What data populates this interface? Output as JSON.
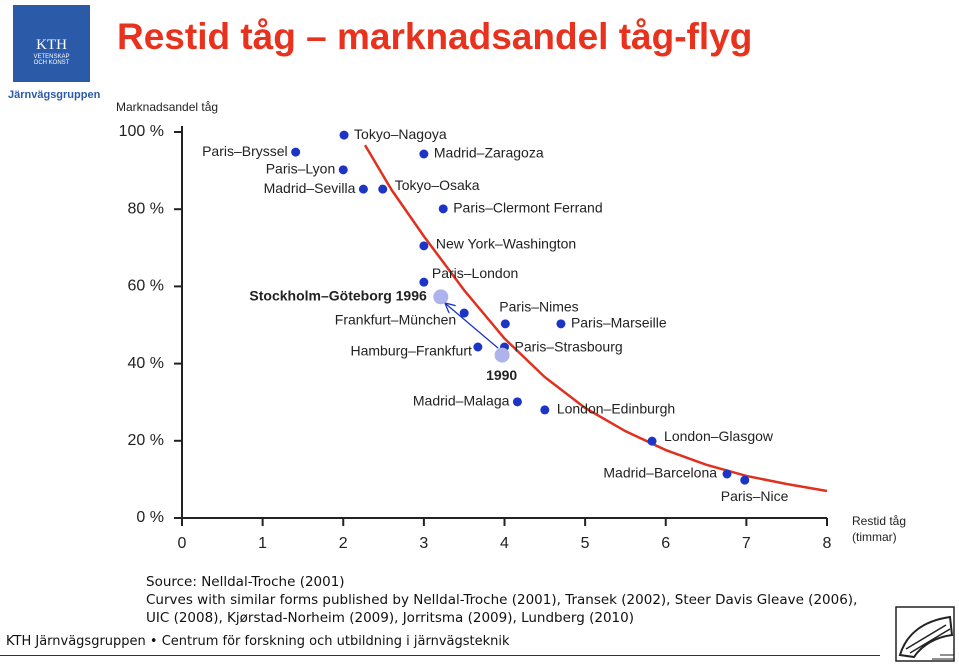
{
  "header": {
    "title": "Restid tåg – marknadsandel tåg-flyg",
    "logo": [
      "KTH",
      "VETENSKAP",
      "OCH KONST"
    ],
    "group": "Järnvägsgruppen"
  },
  "chart_data": {
    "type": "scatter",
    "ylabel": "Marknadsandel tåg",
    "xlabel": [
      "Restid  tåg",
      "(timmar)"
    ],
    "xlim": [
      0,
      8
    ],
    "xticks": [
      0,
      1,
      2,
      3,
      4,
      5,
      6,
      7,
      8
    ],
    "ylim": [
      0,
      100
    ],
    "yticks": [
      {
        "value": 0,
        "label": "0 %"
      },
      {
        "value": 20,
        "label": "20 %"
      },
      {
        "value": 40,
        "label": "40 %"
      },
      {
        "value": 60,
        "label": "60 %"
      },
      {
        "value": 80,
        "label": "80 %"
      },
      {
        "value": 100,
        "label": "100 %"
      }
    ],
    "points": [
      {
        "label": "Paris–Bryssel",
        "x": 1.41,
        "y": 94.8,
        "color": "#1c35c4"
      },
      {
        "label": "Tokyo–Nagoya",
        "x": 2.01,
        "y": 99.2,
        "color": "#1c35c4"
      },
      {
        "label": "Paris–Lyon",
        "x": 2.0,
        "y": 90.2,
        "color": "#1c35c4"
      },
      {
        "label": "Madrid–Zaragoza",
        "x": 3.0,
        "y": 94.3,
        "color": "#1c35c4"
      },
      {
        "label": "Madrid–Sevilla",
        "x": 2.25,
        "y": 85.2,
        "color": "#1c35c4"
      },
      {
        "label": "Tokyo–Osaka",
        "x": 2.49,
        "y": 85.2,
        "color": "#1c35c4"
      },
      {
        "label": "Paris–Clermont Ferrand",
        "x": 3.24,
        "y": 80.1,
        "color": "#1c35c4"
      },
      {
        "label": "New York–Washington",
        "x": 3.0,
        "y": 70.5,
        "color": "#1c35c4"
      },
      {
        "label": "Paris–London",
        "x": 3.0,
        "y": 61.1,
        "color": "#1c35c4"
      },
      {
        "label": "Stockholm–Göteborg  1996",
        "x": 3.21,
        "y": 57.3,
        "color": "#aeb3ee"
      },
      {
        "label": "Frankfurt–München",
        "x": 3.5,
        "y": 53.1,
        "color": "#1c35c4"
      },
      {
        "label": "Paris–Nimes",
        "x": 4.01,
        "y": 50.3,
        "color": "#1c35c4"
      },
      {
        "label": "Paris–Marseille",
        "x": 4.7,
        "y": 50.3,
        "color": "#1c35c4"
      },
      {
        "label": "Hamburg–Frankfurt",
        "x": 3.67,
        "y": 44.3,
        "color": "#1c35c4"
      },
      {
        "label": "Paris–Strasbourg",
        "x": 4.0,
        "y": 44.3,
        "color": "#1c35c4"
      },
      {
        "label": "1990",
        "x": 3.97,
        "y": 42.2,
        "color": "#aeb3ee"
      },
      {
        "label": "Madrid–Malaga",
        "x": 4.16,
        "y": 30.1,
        "color": "#1c35c4"
      },
      {
        "label": "London–Edinburgh",
        "x": 4.5,
        "y": 28.0,
        "color": "#1c35c4"
      },
      {
        "label": "London–Glasgow",
        "x": 5.83,
        "y": 19.9,
        "color": "#1c35c4"
      },
      {
        "label": "Madrid–Barcelona",
        "x": 6.76,
        "y": 11.4,
        "color": "#1c35c4"
      },
      {
        "label": "Paris–Nice",
        "x": 6.98,
        "y": 9.8,
        "color": "#1c35c4"
      }
    ],
    "trend": {
      "color": "#e0301e",
      "x": [
        2.27,
        2.6,
        3.0,
        3.5,
        4.0,
        4.5,
        5.0,
        5.5,
        6.0,
        6.5,
        7.0,
        7.5,
        8.0
      ],
      "y": [
        96.6,
        85,
        73,
        59,
        46.5,
        36.5,
        28.5,
        22.5,
        17.6,
        13.8,
        10.9,
        8.8,
        7.0
      ]
    }
  },
  "source": [
    "Source: Nelldal-Troche (2001)",
    "Curves with similar forms published by Nelldal-Troche (2001), Transek (2002), Steer Davis Gleave (2006), UIC (2008), Kjørstad-Norheim (2009), Jorritsma (2009), Lundberg (2010)"
  ],
  "footer": "KTH Järnvägsgruppen • Centrum för forskning och utbildning i järnvägsteknik"
}
